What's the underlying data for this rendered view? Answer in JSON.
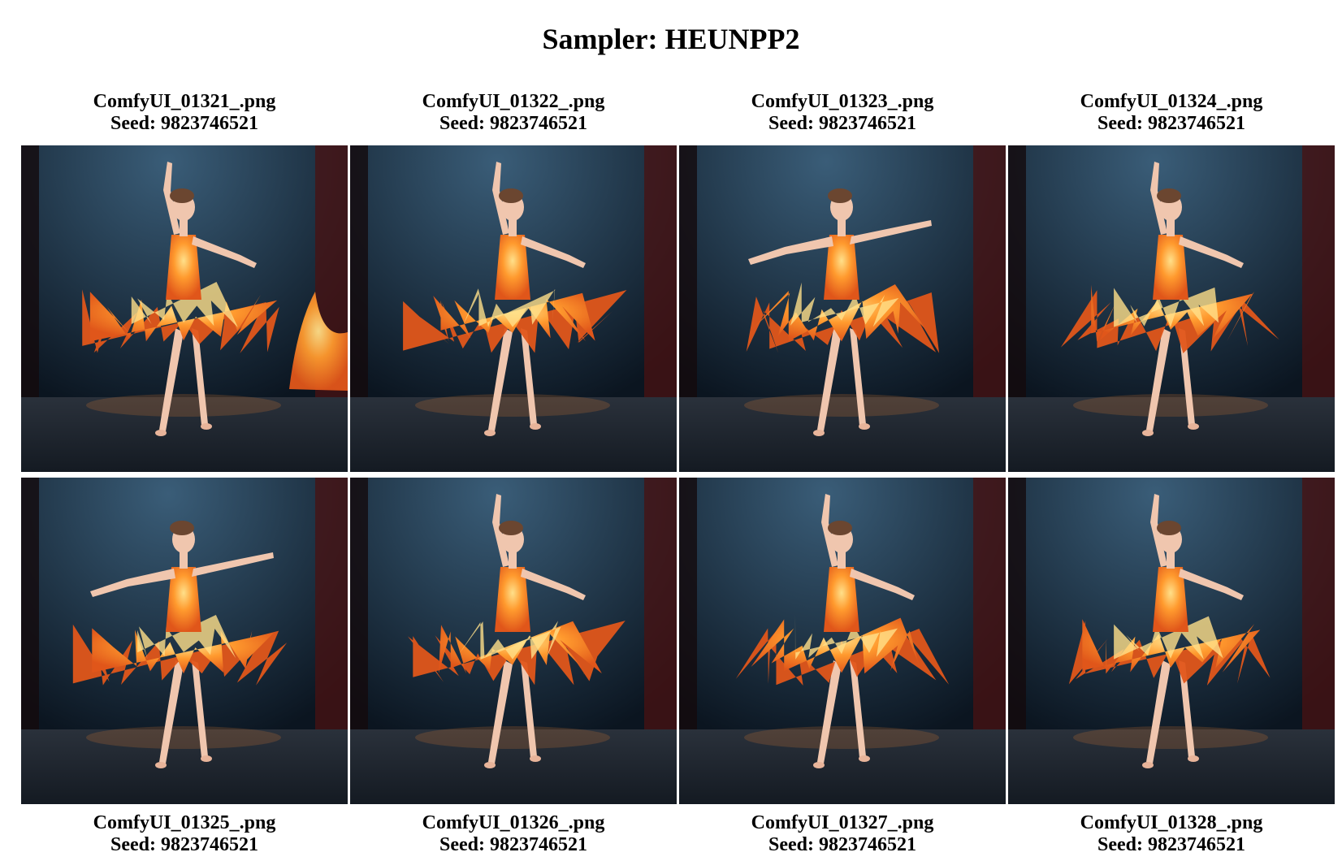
{
  "title": "Sampler: HEUNPP2",
  "images": [
    {
      "filename": "ComfyUI_01321_.png",
      "seed": "Seed: 9823746521",
      "pose": "left-arm-up",
      "side_fire": true
    },
    {
      "filename": "ComfyUI_01322_.png",
      "seed": "Seed: 9823746521",
      "pose": "left-arm-up",
      "side_fire": false
    },
    {
      "filename": "ComfyUI_01323_.png",
      "seed": "Seed: 9823746521",
      "pose": "arms-wide",
      "side_fire": false
    },
    {
      "filename": "ComfyUI_01324_.png",
      "seed": "Seed: 9823746521",
      "pose": "left-arm-up",
      "side_fire": false
    },
    {
      "filename": "ComfyUI_01325_.png",
      "seed": "Seed: 9823746521",
      "pose": "arms-wide",
      "side_fire": false
    },
    {
      "filename": "ComfyUI_01326_.png",
      "seed": "Seed: 9823746521",
      "pose": "left-arm-up",
      "side_fire": false
    },
    {
      "filename": "ComfyUI_01327_.png",
      "seed": "Seed: 9823746521",
      "pose": "left-arm-up",
      "side_fire": false
    },
    {
      "filename": "ComfyUI_01328_.png",
      "seed": "Seed: 9823746521",
      "pose": "left-arm-up",
      "side_fire": false
    }
  ],
  "colors": {
    "stage_dark": "#0b1520",
    "spotlight": "#3a5d78",
    "curtain": "#4a1212",
    "fire_outer": "#e0561a",
    "fire_mid": "#ff9a2e",
    "fire_core": "#ffe08a",
    "skin": "#f0c6ae",
    "floor": "#1f2630"
  }
}
